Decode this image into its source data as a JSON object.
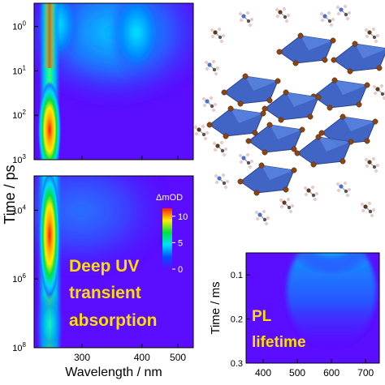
{
  "chart_data": [
    {
      "type": "heatmap",
      "panel": "transient absorption, short delays",
      "ylabel": "Time / ps",
      "y_scale": "log",
      "y_ticks": [
        {
          "value": 1,
          "label_base": "10",
          "label_exp": "0"
        },
        {
          "value": 10,
          "label_base": "10",
          "label_exp": "1"
        },
        {
          "value": 100,
          "label_base": "10",
          "label_exp": "2"
        },
        {
          "value": 1000,
          "label_base": "10",
          "label_exp": "3"
        }
      ],
      "x_scale": "reciprocal",
      "xlim": [
        250,
        560
      ],
      "ylim": [
        0.3,
        1000
      ],
      "y_inverted": true,
      "features": [
        {
          "x": 282,
          "y": 300,
          "level": 11
        },
        {
          "x": 300,
          "y": 1,
          "level": 3
        },
        {
          "x": 440,
          "y": 1,
          "level": 3
        }
      ]
    },
    {
      "type": "heatmap",
      "panel": "transient absorption, long delays",
      "xlabel": "Wavelength / nm",
      "y_scale": "log",
      "y_ticks": [
        {
          "value": 10000,
          "label_base": "10",
          "label_exp": "4"
        },
        {
          "value": 1000000,
          "label_base": "10",
          "label_exp": "6"
        },
        {
          "value": 100000000,
          "label_base": "10",
          "label_exp": "8"
        }
      ],
      "x_scale": "reciprocal",
      "x_ticks": [
        300,
        400,
        500
      ],
      "xlim": [
        250,
        560
      ],
      "ylim": [
        1000,
        100000000
      ],
      "y_inverted": true,
      "features": [
        {
          "x": 282,
          "y": 100000,
          "level": 11
        }
      ],
      "colorbar": {
        "label": "ΔmOD",
        "ticks": [
          0,
          5,
          10
        ],
        "range": [
          0,
          11.5
        ],
        "colors": [
          "#5a0dff",
          "#0050ff",
          "#00e0ff",
          "#00e040",
          "#ffee00",
          "#ff2000"
        ]
      },
      "annotation": [
        "Deep UV",
        "transient",
        "absorption"
      ]
    },
    {
      "type": "heatmap",
      "panel": "PL lifetime",
      "ylabel": "Time / ms",
      "y_ticks": [
        0.1,
        0.2,
        0.3
      ],
      "x_ticks": [
        400,
        500,
        600,
        700
      ],
      "xlim": [
        350,
        740
      ],
      "ylim": [
        0.05,
        0.3
      ],
      "y_inverted": true,
      "features": [
        {
          "x": 530,
          "y": 0.05,
          "level": 11
        }
      ],
      "annotation": [
        "PL",
        "lifetime"
      ]
    }
  ],
  "colors": {
    "background": "#5a0dff",
    "annotation": "#ffdd00",
    "octahedron": "#3058c0",
    "bromine": "#8b4513"
  }
}
